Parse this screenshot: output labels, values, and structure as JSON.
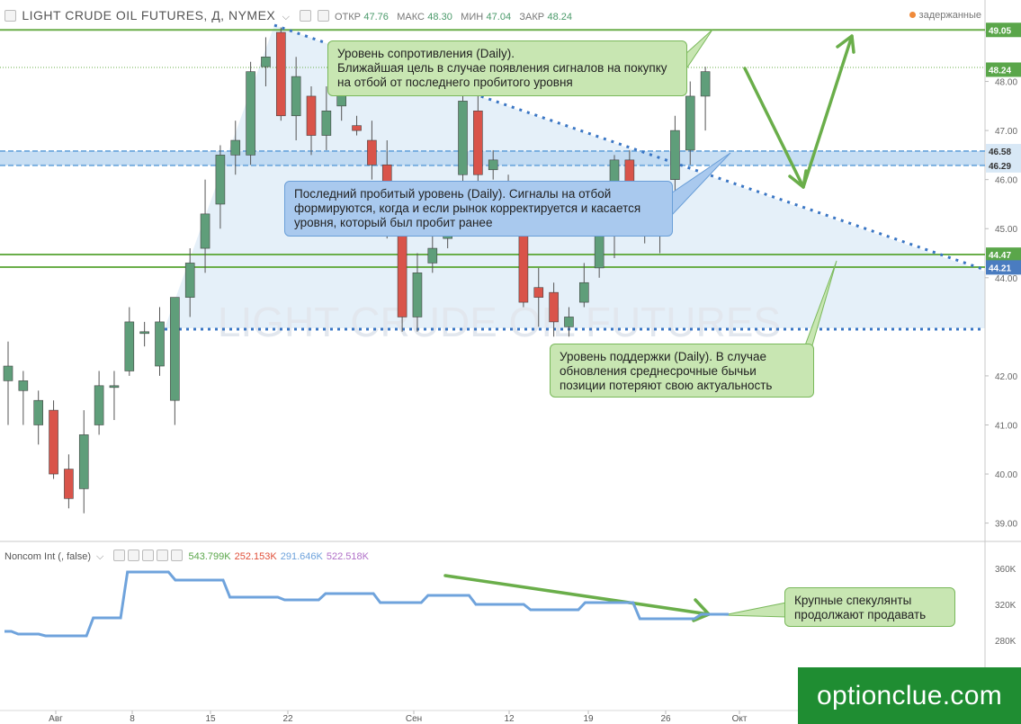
{
  "header": {
    "symbol": "LIGHT CRUDE OIL FUTURES, Д, NYMEX",
    "open_label": "ОТКР",
    "open": "47.76",
    "high_label": "МАКС",
    "high": "48.30",
    "low_label": "МИН",
    "low": "47.04",
    "close_label": "ЗАКР",
    "close": "48.24",
    "status": "задержанные"
  },
  "watermark": "LIGHT CRUDE OIL FUTURES",
  "price_axis": {
    "ticks": [
      "49.00",
      "48.00",
      "47.00",
      "46.00",
      "45.00",
      "44.00",
      "42.00",
      "41.00",
      "40.00",
      "39.00"
    ],
    "badges": [
      {
        "value": 49.05,
        "label": "49.05",
        "color": "#5aa64a"
      },
      {
        "value": 48.24,
        "label": "48.24",
        "color": "#5aa64a"
      },
      {
        "value": 46.58,
        "label": "46.58",
        "color": "#d8e8f6"
      },
      {
        "value": 46.29,
        "label": "46.29",
        "color": "#d8e8f6"
      },
      {
        "value": 44.47,
        "label": "44.47",
        "color": "#5aa64a"
      },
      {
        "value": 44.21,
        "label": "44.21",
        "color": "#4a7cc0"
      }
    ]
  },
  "time_axis": [
    "Авг",
    "8",
    "15",
    "22",
    "Сен",
    "12",
    "19",
    "26",
    "Окт"
  ],
  "annotations": {
    "resistance": "Уровень сопротивления (Daily).\nБлижайшая цель в случае появления сигналов на покупку на отбой от последнего пробитого уровня",
    "broken": "Последний пробитый уровень (Daily). Сигналы на отбой формируются, когда и если рынок корректируется и касается уровня, который был пробит ранее",
    "support": "Уровень поддержки (Daily). В случае обновления среднесрочные бычьи позиции потеряют свою актуальность",
    "speculators": "Крупные спекулянты продолжают продавать"
  },
  "indicator": {
    "name": "Noncom Int (, false)",
    "values": [
      {
        "label": "543.799K",
        "color": "#5aa64a"
      },
      {
        "label": "252.153K",
        "color": "#e0503a"
      },
      {
        "label": "291.646K",
        "color": "#6fa3dc"
      },
      {
        "label": "522.518K",
        "color": "#b070c8"
      }
    ],
    "ticks": [
      "360K",
      "320K",
      "280K"
    ]
  },
  "brand": "optionclue.com",
  "chart_data": {
    "type": "candlestick",
    "ohlc": [
      [
        41.9,
        42.2,
        41.0,
        42.7
      ],
      [
        41.7,
        41.9,
        41.0,
        42.1
      ],
      [
        41.0,
        41.5,
        40.6,
        41.7
      ],
      [
        41.3,
        40.0,
        39.9,
        41.5
      ],
      [
        40.1,
        39.5,
        39.3,
        40.4
      ],
      [
        39.7,
        40.8,
        39.2,
        41.3
      ],
      [
        41.0,
        41.8,
        40.8,
        42.1
      ],
      [
        41.8,
        41.8,
        41.1,
        42.1
      ],
      [
        42.1,
        43.1,
        42.0,
        43.4
      ],
      [
        42.9,
        42.9,
        42.6,
        43.1
      ],
      [
        42.2,
        43.1,
        42.0,
        43.4
      ],
      [
        41.5,
        43.6,
        41.0,
        43.6
      ],
      [
        43.6,
        44.3,
        43.2,
        44.6
      ],
      [
        44.6,
        45.3,
        44.1,
        46.0
      ],
      [
        45.5,
        46.5,
        45.0,
        46.7
      ],
      [
        46.5,
        46.8,
        46.1,
        47.2
      ],
      [
        46.5,
        48.2,
        46.3,
        48.4
      ],
      [
        48.3,
        48.5,
        47.9,
        48.9
      ],
      [
        49.0,
        47.3,
        47.2,
        49.1
      ],
      [
        47.3,
        48.1,
        46.8,
        48.5
      ],
      [
        47.7,
        46.9,
        46.5,
        47.9
      ],
      [
        46.9,
        47.4,
        46.6,
        47.9
      ],
      [
        47.5,
        47.8,
        47.2,
        48.2
      ],
      [
        47.1,
        47.0,
        46.9,
        47.3
      ],
      [
        46.8,
        46.3,
        46.0,
        47.2
      ],
      [
        46.3,
        45.0,
        44.8,
        46.8
      ],
      [
        45.1,
        43.2,
        42.9,
        45.6
      ],
      [
        43.2,
        44.1,
        42.9,
        44.5
      ],
      [
        44.3,
        44.6,
        44.1,
        45.0
      ],
      [
        44.8,
        45.3,
        44.6,
        45.7
      ],
      [
        46.1,
        47.6,
        45.5,
        47.8
      ],
      [
        47.4,
        46.1,
        45.9,
        47.7
      ],
      [
        46.2,
        46.4,
        46.0,
        46.6
      ],
      [
        45.9,
        45.3,
        45.1,
        46.1
      ],
      [
        45.0,
        43.5,
        43.4,
        45.1
      ],
      [
        43.8,
        43.6,
        43.0,
        44.2
      ],
      [
        43.7,
        43.1,
        42.8,
        43.9
      ],
      [
        43.0,
        43.2,
        42.8,
        43.4
      ],
      [
        43.5,
        43.9,
        43.4,
        44.3
      ],
      [
        44.2,
        44.9,
        44.0,
        45.0
      ],
      [
        45.0,
        46.4,
        44.4,
        46.5
      ],
      [
        46.4,
        45.9,
        45.7,
        46.6
      ],
      [
        45.0,
        45.2,
        44.7,
        45.5
      ],
      [
        45.5,
        45.1,
        44.5,
        45.9
      ],
      [
        46.0,
        47.0,
        45.7,
        47.3
      ],
      [
        46.6,
        47.7,
        46.3,
        48.0
      ],
      [
        47.7,
        48.2,
        47.0,
        48.3
      ]
    ],
    "levels": [
      49.05,
      44.47,
      44.21
    ],
    "zone": [
      46.29,
      46.58
    ],
    "indicator_series": [
      290,
      290,
      287,
      287,
      287,
      287,
      285,
      285,
      285,
      285,
      285,
      285,
      285,
      305,
      305,
      305,
      305,
      305,
      356,
      356,
      356,
      356,
      356,
      356,
      356,
      347,
      347,
      347,
      347,
      347,
      347,
      347,
      347,
      328,
      328,
      328,
      328,
      328,
      328,
      328,
      328,
      325,
      325,
      325,
      325,
      325,
      325,
      332,
      332,
      332,
      332,
      332,
      332,
      332,
      332,
      322,
      322,
      322,
      322,
      322,
      322,
      322,
      330,
      330,
      330,
      330,
      330,
      330,
      330,
      320,
      320,
      320,
      320,
      320,
      320,
      320,
      320,
      314,
      314,
      314,
      314,
      314,
      314,
      314,
      314,
      322,
      322,
      322,
      322,
      322,
      322,
      322,
      322,
      304,
      304,
      304,
      304,
      304,
      304,
      304,
      304,
      304,
      309,
      309,
      309,
      309,
      309
    ],
    "ylim": [
      38.5,
      49.5
    ],
    "indicator_ylim": [
      260,
      370
    ]
  }
}
